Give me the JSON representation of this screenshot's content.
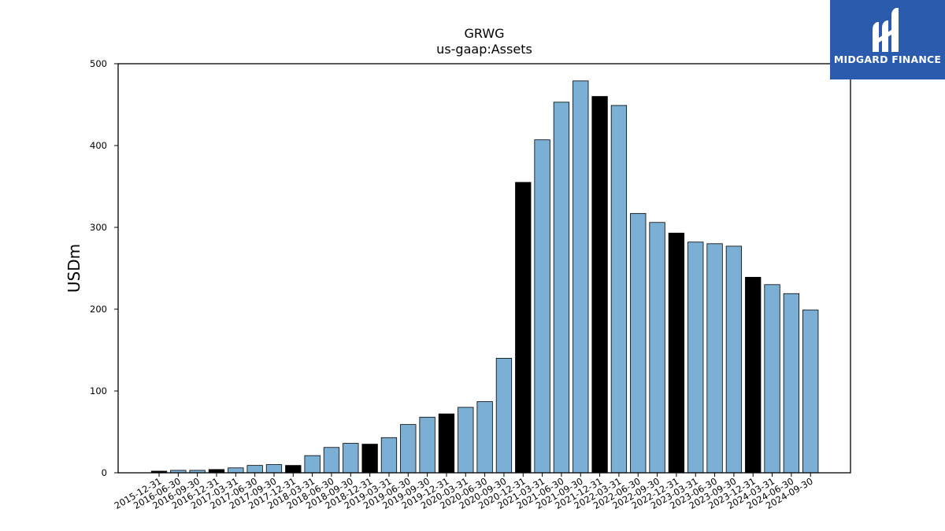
{
  "chart_data": {
    "type": "bar",
    "title": "GRWG",
    "subtitle": "us-gaap:Assets",
    "xlabel": "",
    "ylabel": "USDm",
    "ylim": [
      0,
      500
    ],
    "yticks": [
      0,
      100,
      200,
      300,
      400,
      500
    ],
    "grid": false,
    "colors": {
      "quarter": "#7bafd4",
      "year_end": "#000000",
      "edge": "#000000"
    },
    "categories": [
      "2015-12-31",
      "2016-06-30",
      "2016-09-30",
      "2016-12-31",
      "2017-03-31",
      "2017-06-30",
      "2017-09-30",
      "2017-12-31",
      "2018-03-31",
      "2018-06-30",
      "2018-09-30",
      "2018-12-31",
      "2019-03-31",
      "2019-06-30",
      "2019-09-30",
      "2019-12-31",
      "2020-03-31",
      "2020-06-30",
      "2020-09-30",
      "2020-12-31",
      "2021-03-31",
      "2021-06-30",
      "2021-09-30",
      "2021-12-31",
      "2022-03-31",
      "2022-06-30",
      "2022-09-30",
      "2022-12-31",
      "2023-03-31",
      "2023-06-30",
      "2023-09-30",
      "2023-12-31",
      "2024-03-31",
      "2024-06-30",
      "2024-09-30"
    ],
    "values": [
      2,
      3,
      3,
      4,
      6,
      9,
      10,
      9,
      21,
      31,
      36,
      35,
      43,
      59,
      68,
      72,
      80,
      87,
      140,
      355,
      407,
      453,
      479,
      460,
      449,
      317,
      306,
      293,
      282,
      280,
      277,
      239,
      230,
      219,
      199
    ]
  },
  "logo": {
    "text": "MIDGARD FINANCE",
    "background": "#2a5bad"
  }
}
